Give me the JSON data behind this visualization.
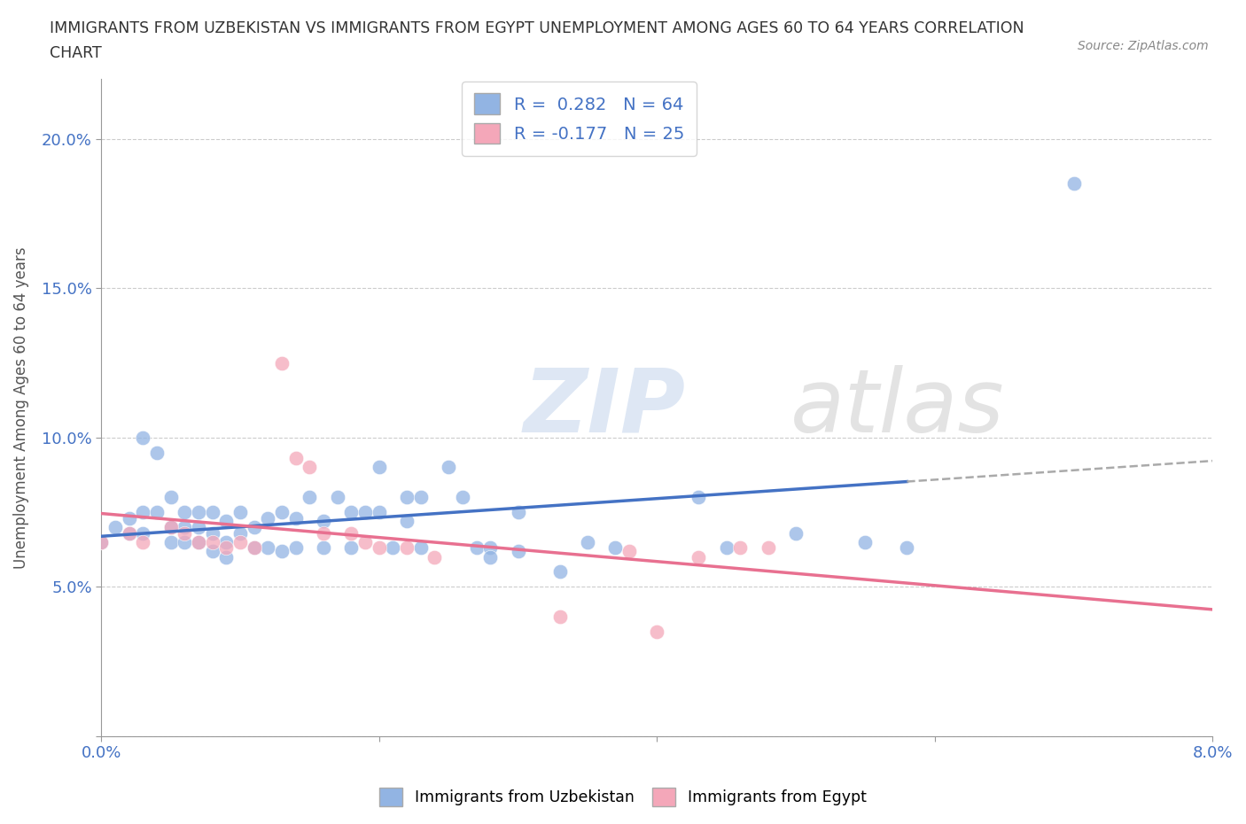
{
  "title_line1": "IMMIGRANTS FROM UZBEKISTAN VS IMMIGRANTS FROM EGYPT UNEMPLOYMENT AMONG AGES 60 TO 64 YEARS CORRELATION",
  "title_line2": "CHART",
  "source": "Source: ZipAtlas.com",
  "ylabel": "Unemployment Among Ages 60 to 64 years",
  "xlim": [
    0.0,
    0.08
  ],
  "ylim": [
    0.0,
    0.22
  ],
  "xticks": [
    0.0,
    0.02,
    0.04,
    0.06,
    0.08
  ],
  "xticklabels": [
    "0.0%",
    "",
    "",
    "",
    "8.0%"
  ],
  "yticks": [
    0.0,
    0.05,
    0.1,
    0.15,
    0.2
  ],
  "yticklabels": [
    "",
    "5.0%",
    "10.0%",
    "15.0%",
    "20.0%"
  ],
  "uzbekistan_R": 0.282,
  "uzbekistan_N": 64,
  "egypt_R": -0.177,
  "egypt_N": 25,
  "uzbekistan_color": "#92b4e3",
  "egypt_color": "#f4a7b9",
  "uzbekistan_line_color": "#4472c4",
  "egypt_line_color": "#e87090",
  "uzbekistan_scatter": [
    [
      0.0,
      0.065
    ],
    [
      0.001,
      0.07
    ],
    [
      0.002,
      0.073
    ],
    [
      0.002,
      0.068
    ],
    [
      0.003,
      0.1
    ],
    [
      0.003,
      0.075
    ],
    [
      0.003,
      0.068
    ],
    [
      0.004,
      0.095
    ],
    [
      0.004,
      0.075
    ],
    [
      0.005,
      0.08
    ],
    [
      0.005,
      0.07
    ],
    [
      0.005,
      0.065
    ],
    [
      0.006,
      0.075
    ],
    [
      0.006,
      0.07
    ],
    [
      0.006,
      0.065
    ],
    [
      0.007,
      0.075
    ],
    [
      0.007,
      0.07
    ],
    [
      0.007,
      0.065
    ],
    [
      0.008,
      0.075
    ],
    [
      0.008,
      0.068
    ],
    [
      0.008,
      0.062
    ],
    [
      0.009,
      0.072
    ],
    [
      0.009,
      0.065
    ],
    [
      0.009,
      0.06
    ],
    [
      0.01,
      0.075
    ],
    [
      0.01,
      0.068
    ],
    [
      0.011,
      0.07
    ],
    [
      0.011,
      0.063
    ],
    [
      0.012,
      0.073
    ],
    [
      0.012,
      0.063
    ],
    [
      0.013,
      0.075
    ],
    [
      0.013,
      0.062
    ],
    [
      0.014,
      0.073
    ],
    [
      0.014,
      0.063
    ],
    [
      0.015,
      0.08
    ],
    [
      0.016,
      0.072
    ],
    [
      0.016,
      0.063
    ],
    [
      0.017,
      0.08
    ],
    [
      0.018,
      0.075
    ],
    [
      0.018,
      0.063
    ],
    [
      0.019,
      0.075
    ],
    [
      0.02,
      0.09
    ],
    [
      0.02,
      0.075
    ],
    [
      0.021,
      0.063
    ],
    [
      0.022,
      0.08
    ],
    [
      0.022,
      0.072
    ],
    [
      0.023,
      0.08
    ],
    [
      0.023,
      0.063
    ],
    [
      0.025,
      0.09
    ],
    [
      0.026,
      0.08
    ],
    [
      0.027,
      0.063
    ],
    [
      0.028,
      0.063
    ],
    [
      0.03,
      0.075
    ],
    [
      0.03,
      0.062
    ],
    [
      0.033,
      0.055
    ],
    [
      0.035,
      0.065
    ],
    [
      0.037,
      0.063
    ],
    [
      0.043,
      0.08
    ],
    [
      0.045,
      0.063
    ],
    [
      0.05,
      0.068
    ],
    [
      0.055,
      0.065
    ],
    [
      0.058,
      0.063
    ],
    [
      0.07,
      0.185
    ],
    [
      0.028,
      0.06
    ]
  ],
  "egypt_scatter": [
    [
      0.0,
      0.065
    ],
    [
      0.002,
      0.068
    ],
    [
      0.003,
      0.065
    ],
    [
      0.005,
      0.07
    ],
    [
      0.006,
      0.068
    ],
    [
      0.007,
      0.065
    ],
    [
      0.008,
      0.065
    ],
    [
      0.009,
      0.063
    ],
    [
      0.01,
      0.065
    ],
    [
      0.011,
      0.063
    ],
    [
      0.013,
      0.125
    ],
    [
      0.014,
      0.093
    ],
    [
      0.015,
      0.09
    ],
    [
      0.016,
      0.068
    ],
    [
      0.018,
      0.068
    ],
    [
      0.019,
      0.065
    ],
    [
      0.02,
      0.063
    ],
    [
      0.022,
      0.063
    ],
    [
      0.024,
      0.06
    ],
    [
      0.033,
      0.04
    ],
    [
      0.038,
      0.062
    ],
    [
      0.04,
      0.035
    ],
    [
      0.043,
      0.06
    ],
    [
      0.046,
      0.063
    ],
    [
      0.048,
      0.063
    ]
  ],
  "watermark_zip": "ZIP",
  "watermark_atlas": "atlas",
  "uzbek_legend": "Immigrants from Uzbekistan",
  "egypt_legend": "Immigrants from Egypt"
}
